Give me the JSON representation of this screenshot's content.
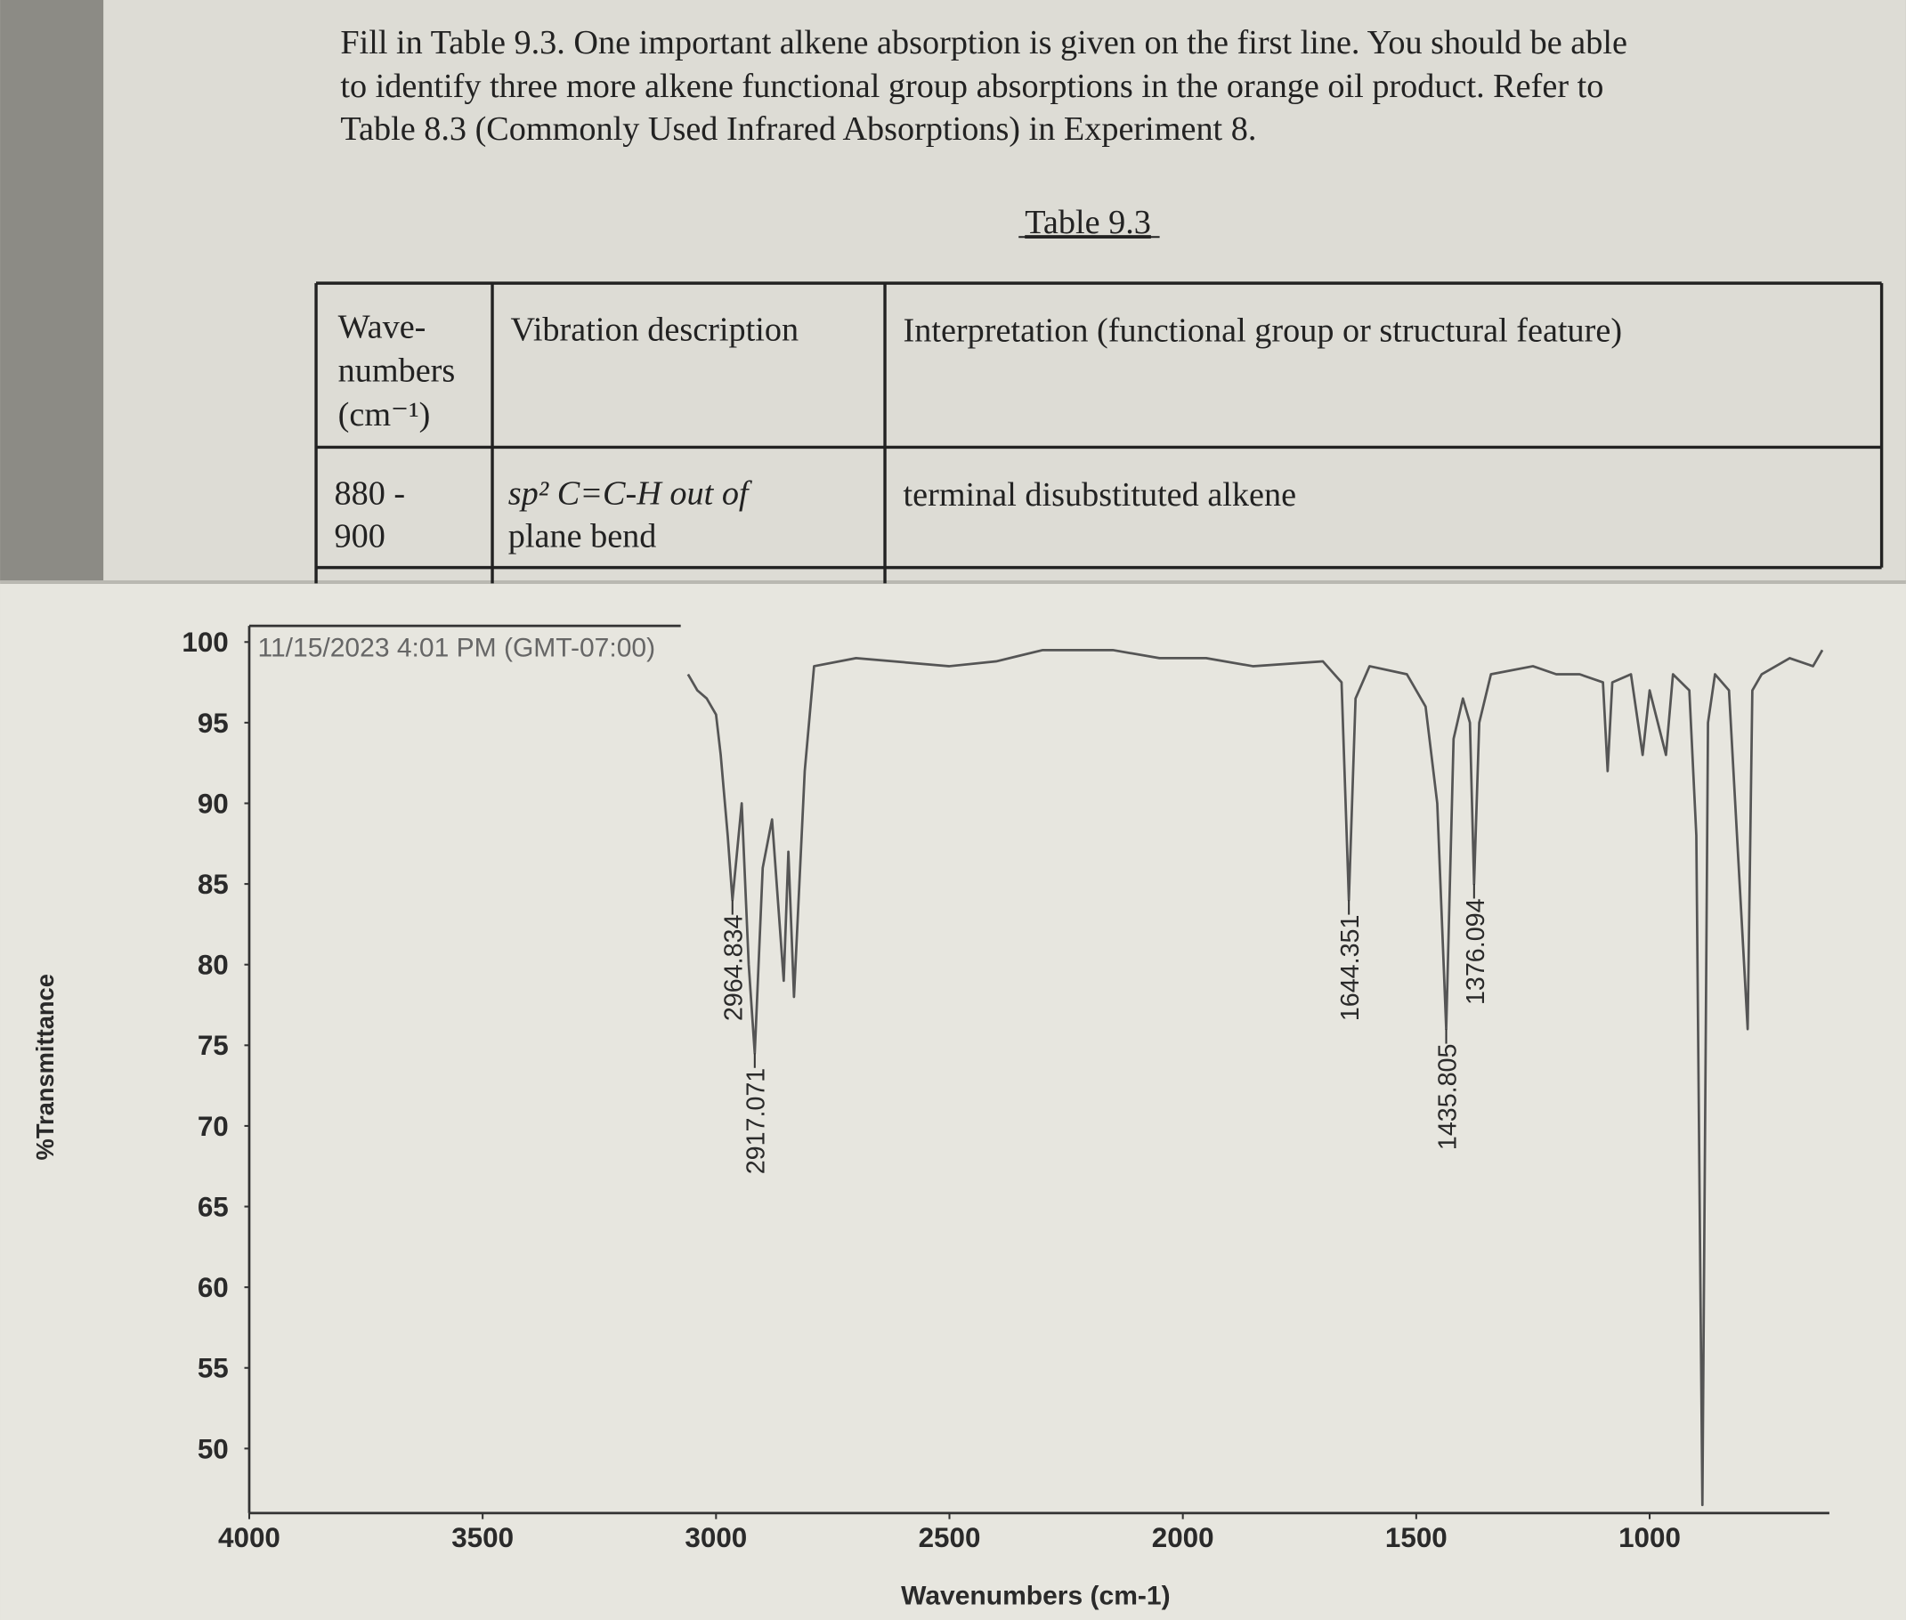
{
  "document": {
    "instructions": [
      "Fill in Table 9.3.  One important alkene absorption is given on the first line.  You should be able",
      "to identify three more alkene functional group absorptions in the orange oil product.  Refer to",
      "Table 8.3 (Commonly Used Infrared Absorptions) in Experiment 8."
    ],
    "table": {
      "caption": "Table 9.3",
      "header": [
        [
          "Wave-",
          "numbers",
          "(cm⁻¹)"
        ],
        [
          "Vibration description"
        ],
        [
          "Interpretation (functional group or structural feature)"
        ]
      ],
      "rows": [
        [
          [
            "880 -",
            "900"
          ],
          [
            "sp² C=C-H out of",
            "plane bend"
          ],
          [
            "terminal disubstituted alkene"
          ]
        ]
      ]
    }
  },
  "chart_data": {
    "type": "line",
    "timestamp": "11/15/2023 4:01 PM (GMT-07:00)",
    "xlabel": "Wavenumbers (cm-1)",
    "ylabel": "%Transmittance",
    "x": [
      3060,
      3040,
      3020,
      3000,
      2990,
      2975,
      2964.834,
      2945,
      2930,
      2917.071,
      2900,
      2880,
      2855,
      2845,
      2833,
      2810,
      2790,
      2700,
      2500,
      2400,
      2300,
      2150,
      2050,
      1950,
      1850,
      1700,
      1660,
      1644.351,
      1630,
      1600,
      1520,
      1480,
      1455,
      1435.805,
      1420,
      1400,
      1385,
      1376.094,
      1365,
      1340,
      1250,
      1200,
      1150,
      1100,
      1090,
      1080,
      1040,
      1015,
      1000,
      965,
      950,
      915,
      900,
      887,
      875,
      860,
      830,
      790,
      780,
      760,
      700,
      650,
      630
    ],
    "series": [
      {
        "color": "#555555",
        "values": [
          98,
          97,
          96.5,
          95.5,
          93,
          88,
          84,
          90,
          80,
          74.5,
          86,
          89,
          79,
          87,
          78,
          92,
          98.5,
          99,
          98.5,
          98.8,
          99.5,
          99.5,
          99,
          99,
          98.5,
          98.8,
          97.5,
          84,
          96.5,
          98.5,
          98,
          96,
          90,
          76,
          94,
          96.5,
          95,
          85,
          95,
          98,
          98.5,
          98,
          98,
          97.5,
          92,
          97.5,
          98,
          93,
          97,
          93,
          98,
          97,
          88,
          46.5,
          95,
          98,
          97,
          76,
          97,
          98,
          99,
          98.5,
          99.5
        ]
      }
    ],
    "annotations": [
      {
        "label": "2964.834",
        "x": 2964.834,
        "y": 84
      },
      {
        "label": "2917.071",
        "x": 2917.071,
        "y": 74.5
      },
      {
        "label": "1644.351",
        "x": 1644.351,
        "y": 84
      },
      {
        "label": "1435.805",
        "x": 1435.805,
        "y": 76
      },
      {
        "label": "1376.094",
        "x": 1376.094,
        "y": 85
      }
    ],
    "xlim": [
      4000,
      615
    ],
    "ylim": [
      46,
      101
    ],
    "xticks": [
      4000,
      3500,
      3000,
      2500,
      2000,
      1500,
      1000
    ],
    "yticks": [
      50,
      55,
      60,
      65,
      70,
      75,
      80,
      85,
      90,
      95,
      100
    ]
  }
}
